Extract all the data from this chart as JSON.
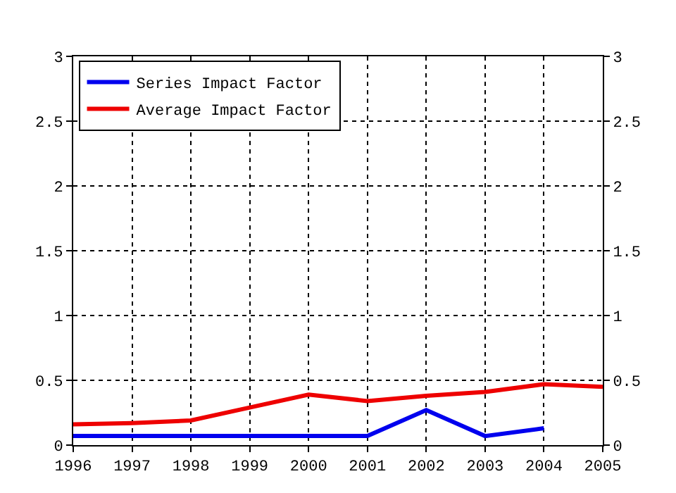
{
  "chart_data": {
    "type": "line",
    "x": [
      1996,
      1997,
      1998,
      1999,
      2000,
      2001,
      2002,
      2003,
      2004,
      2005
    ],
    "series": [
      {
        "name": "Series Impact Factor",
        "color": "#0000ee",
        "values": [
          0.07,
          0.07,
          0.07,
          0.07,
          0.07,
          0.07,
          0.27,
          0.07,
          0.13,
          null
        ]
      },
      {
        "name": "Average Impact Factor",
        "color": "#ee0000",
        "values": [
          0.16,
          0.17,
          0.19,
          0.29,
          0.39,
          0.34,
          0.38,
          0.41,
          0.47,
          0.45
        ]
      }
    ],
    "xlim": [
      1996,
      2005
    ],
    "xticks": [
      1996,
      1997,
      1998,
      1999,
      2000,
      2001,
      2002,
      2003,
      2004,
      2005
    ],
    "ylim": [
      0,
      3
    ],
    "yticks": [
      0,
      0.5,
      1,
      1.5,
      2,
      2.5,
      3
    ],
    "y2lim": [
      0,
      3
    ],
    "y2ticks": [
      0,
      0.5,
      1,
      1.5,
      2,
      2.5,
      3
    ],
    "grid": true,
    "legend": "top left",
    "marker": "none",
    "line_style": "solid"
  }
}
